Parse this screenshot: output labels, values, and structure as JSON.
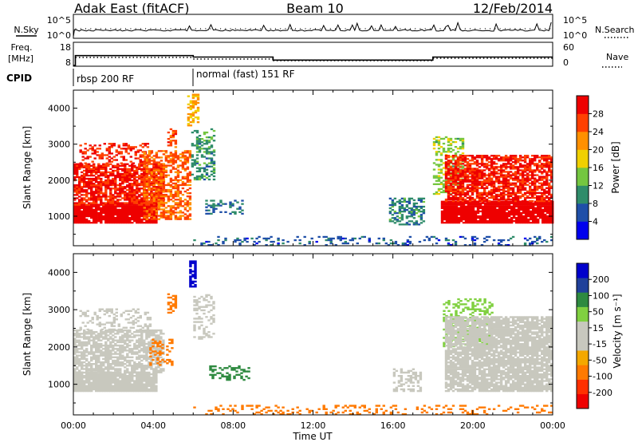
{
  "header": {
    "station": "Adak East (fitACF)",
    "beam": "Beam 10",
    "date": "12/Feb/2014"
  },
  "nsky_panel": {
    "left_label": "N.Sky",
    "left_ticks": [
      "10^5",
      "10^0"
    ],
    "right_ticks": [
      "10^5",
      "10^0"
    ],
    "right_label": "N.Search"
  },
  "freq_panel": {
    "left_label_line1": "Freq.",
    "left_label_line2": "[MHz]",
    "left_ticks": [
      "18",
      "8"
    ],
    "right_ticks": [
      "60",
      "0"
    ],
    "right_label": "Nave",
    "freq_segments": [
      {
        "start_hour": 0.0,
        "end_hour": 0.1,
        "mhz": 8
      },
      {
        "start_hour": 0.1,
        "end_hour": 6.0,
        "mhz": 14.5
      },
      {
        "start_hour": 6.0,
        "end_hour": 10.0,
        "mhz": 13.5
      },
      {
        "start_hour": 10.0,
        "end_hour": 18.0,
        "mhz": 11.5
      },
      {
        "start_hour": 18.0,
        "end_hour": 24.0,
        "mhz": 13.5
      }
    ]
  },
  "cpid": {
    "label": "CPID",
    "modes": [
      {
        "start_hour": 0.0,
        "text": "rbsp 200 RF"
      },
      {
        "start_hour": 6.0,
        "text": "normal (fast) 151 RF"
      }
    ]
  },
  "colors": {
    "power_scale": [
      "#0000ee",
      "#1f4fa8",
      "#2f8c6a",
      "#74c640",
      "#f0d000",
      "#ff9000",
      "#ff4000",
      "#ee0000"
    ],
    "velocity_scale": [
      "#ee0000",
      "#ff3000",
      "#ff7a00",
      "#f4a800",
      "#c8c8be",
      "#c8c8be",
      "#80d040",
      "#2e8a40",
      "#20409a",
      "#0000cc"
    ],
    "ground_scatter": "#bcbcb4"
  },
  "chart_data": [
    {
      "type": "heatmap",
      "title": "",
      "xlabel": "Time UT",
      "ylabel": "Slant Range [km]",
      "x_ticks": [
        "00:00",
        "04:00",
        "08:00",
        "12:00",
        "16:00",
        "20:00",
        "00:00"
      ],
      "xlim_hours": [
        0,
        24
      ],
      "y_ticks": [
        "1000",
        "2000",
        "3000",
        "4000"
      ],
      "ylim": [
        180,
        4500
      ],
      "colorbar": {
        "label": "Power [dB]",
        "ticks": [
          "28",
          "24",
          "20",
          "16",
          "12",
          "8",
          "4"
        ],
        "range": [
          0,
          30
        ]
      },
      "regions": [
        {
          "t0": 0.0,
          "t1": 4.2,
          "r0": 800,
          "r1": 1300,
          "value": 30,
          "density": 0.95
        },
        {
          "t0": 0.0,
          "t1": 4.5,
          "r0": 1300,
          "r1": 2450,
          "value": 27,
          "density": 0.8
        },
        {
          "t0": 0.3,
          "t1": 3.8,
          "r0": 2450,
          "r1": 3000,
          "value": 26,
          "density": 0.35
        },
        {
          "t0": 3.5,
          "t1": 5.9,
          "r0": 900,
          "r1": 2800,
          "value": 23,
          "density": 0.55
        },
        {
          "t0": 4.7,
          "t1": 5.1,
          "r0": 2900,
          "r1": 3400,
          "value": 24,
          "density": 0.55
        },
        {
          "t0": 5.7,
          "t1": 6.2,
          "r0": 3500,
          "r1": 4400,
          "value": 19,
          "density": 0.5
        },
        {
          "t0": 5.9,
          "t1": 7.0,
          "r0": 2000,
          "r1": 3400,
          "value": 10,
          "density": 0.45
        },
        {
          "t0": 6.6,
          "t1": 8.5,
          "r0": 1050,
          "r1": 1450,
          "value": 7,
          "density": 0.35
        },
        {
          "t0": 15.8,
          "t1": 17.5,
          "r0": 750,
          "r1": 1500,
          "value": 9,
          "density": 0.5
        },
        {
          "t0": 18.0,
          "t1": 19.5,
          "r0": 1600,
          "r1": 3200,
          "value": 14,
          "density": 0.4
        },
        {
          "t0": 18.4,
          "t1": 24.0,
          "r0": 800,
          "r1": 1400,
          "value": 30,
          "density": 0.95
        },
        {
          "t0": 18.6,
          "t1": 24.0,
          "r0": 1400,
          "r1": 2700,
          "value": 27,
          "density": 0.75
        },
        {
          "t0": 6.0,
          "t1": 24.0,
          "r0": 180,
          "r1": 450,
          "value": 6,
          "density": 0.2
        }
      ]
    },
    {
      "type": "heatmap",
      "title": "",
      "xlabel": "Time UT",
      "ylabel": "Slant Range [km]",
      "x_ticks": [
        "00:00",
        "04:00",
        "08:00",
        "12:00",
        "16:00",
        "20:00",
        "00:00"
      ],
      "xlim_hours": [
        0,
        24
      ],
      "y_ticks": [
        "1000",
        "2000",
        "3000",
        "4000"
      ],
      "ylim": [
        180,
        4500
      ],
      "colorbar": {
        "label": "Velocity [m s⁻¹]",
        "ticks": [
          "200",
          "100",
          "50",
          "15",
          "-15",
          "-50",
          "-100",
          "-200"
        ],
        "range": [
          -250,
          250
        ]
      },
      "regions": [
        {
          "t0": 0.0,
          "t1": 4.2,
          "r0": 800,
          "r1": 1300,
          "value": 0,
          "density": 0.95
        },
        {
          "t0": 0.0,
          "t1": 4.5,
          "r0": 1300,
          "r1": 2450,
          "value": 0,
          "density": 0.7
        },
        {
          "t0": 0.3,
          "t1": 3.8,
          "r0": 2450,
          "r1": 3000,
          "value": 0,
          "density": 0.3
        },
        {
          "t0": 3.8,
          "t1": 5.0,
          "r0": 1500,
          "r1": 2200,
          "value": -60,
          "density": 0.35
        },
        {
          "t0": 4.7,
          "t1": 5.1,
          "r0": 2900,
          "r1": 3400,
          "value": -60,
          "density": 0.55
        },
        {
          "t0": 5.8,
          "t1": 6.1,
          "r0": 3600,
          "r1": 4300,
          "value": 220,
          "density": 0.8
        },
        {
          "t0": 6.0,
          "t1": 7.0,
          "r0": 2200,
          "r1": 3400,
          "value": 0,
          "density": 0.4
        },
        {
          "t0": 6.8,
          "t1": 8.8,
          "r0": 1100,
          "r1": 1500,
          "value": 70,
          "density": 0.35
        },
        {
          "t0": 16.0,
          "t1": 17.4,
          "r0": 800,
          "r1": 1400,
          "value": 0,
          "density": 0.4
        },
        {
          "t0": 18.5,
          "t1": 21.0,
          "r0": 2000,
          "r1": 3300,
          "value": 35,
          "density": 0.4
        },
        {
          "t0": 18.6,
          "t1": 24.0,
          "r0": 800,
          "r1": 2800,
          "value": 0,
          "density": 0.85
        },
        {
          "t0": 6.0,
          "t1": 24.0,
          "r0": 180,
          "r1": 420,
          "value": -60,
          "density": 0.2
        }
      ]
    }
  ]
}
